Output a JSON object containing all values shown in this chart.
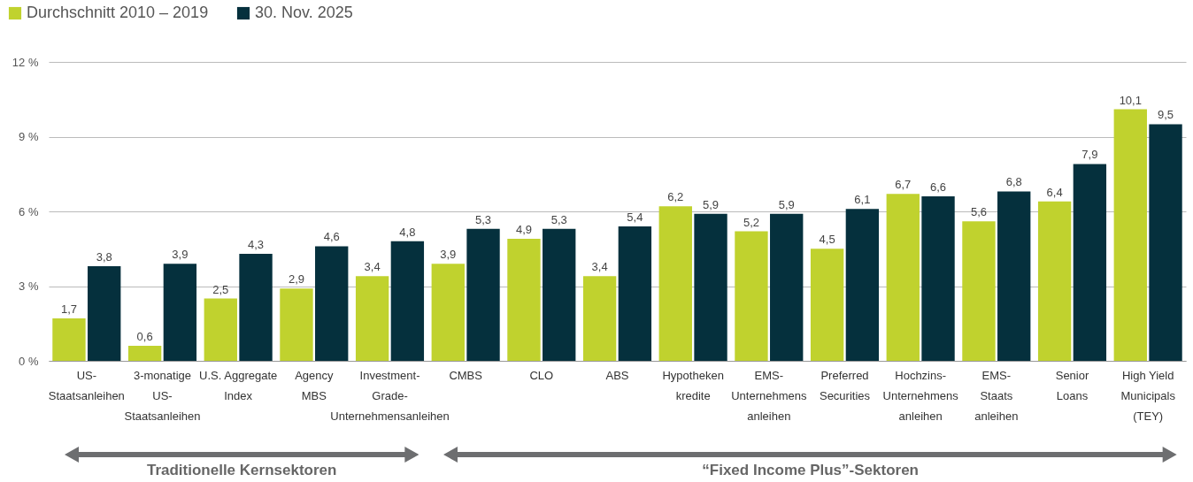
{
  "chart_data": {
    "type": "bar",
    "categories": [
      "US-\nStaatsanleihen",
      "3-monatige\nUS-\nStaatsanleihen",
      "U.S. Aggregate\nIndex",
      "Agency\nMBS",
      "Investment-\nGrade-\nUnternehmensanleihen",
      "CMBS",
      "CLO",
      "ABS",
      "Hypotheken\nkredite",
      "EMS-\nUnternehmens\nanleihen",
      "Preferred\nSecurities",
      "Hochzins-\nUnternehmens\nanleihen",
      "EMS-\nStaats\nanleihen",
      "Senior\nLoans",
      "High Yield\nMunicipals\n(TEY)"
    ],
    "series": [
      {
        "name": "Durchschnitt 2010 – 2019",
        "color": "#c0d22e",
        "values": [
          1.7,
          0.6,
          2.5,
          2.9,
          3.4,
          3.9,
          4.9,
          3.4,
          6.2,
          5.2,
          4.5,
          6.7,
          5.6,
          6.4,
          10.1
        ],
        "value_labels": [
          "1,7",
          "0,6",
          "2,5",
          "2,9",
          "3,4",
          "3,9",
          "4,9",
          "3,4",
          "6,2",
          "5,2",
          "4,5",
          "6,7",
          "5,6",
          "6,4",
          "10,1"
        ]
      },
      {
        "name": "30. Nov. 2025",
        "color": "#05303d",
        "values": [
          3.8,
          3.9,
          4.3,
          4.6,
          4.8,
          5.3,
          5.3,
          5.4,
          5.9,
          5.9,
          6.1,
          6.6,
          6.8,
          7.9,
          9.5
        ],
        "value_labels": [
          "3,8",
          "3,9",
          "4,3",
          "4,6",
          "4,8",
          "5,3",
          "5,3",
          "5,4",
          "5,9",
          "5,9",
          "6,1",
          "6,6",
          "6,8",
          "7,9",
          "9,5"
        ]
      }
    ],
    "ylim": [
      0,
      12
    ],
    "yticks": [
      {
        "value": 0,
        "label": "0 %"
      },
      {
        "value": 3,
        "label": "3 %"
      },
      {
        "value": 6,
        "label": "6 %"
      },
      {
        "value": 9,
        "label": "9 %"
      },
      {
        "value": 12,
        "label": "12 %"
      }
    ],
    "grid": "y",
    "legend": "top left",
    "annotations": [
      "Traditionelle Kernsektoren",
      "“Fixed Income Plus”-Sektoren"
    ]
  }
}
